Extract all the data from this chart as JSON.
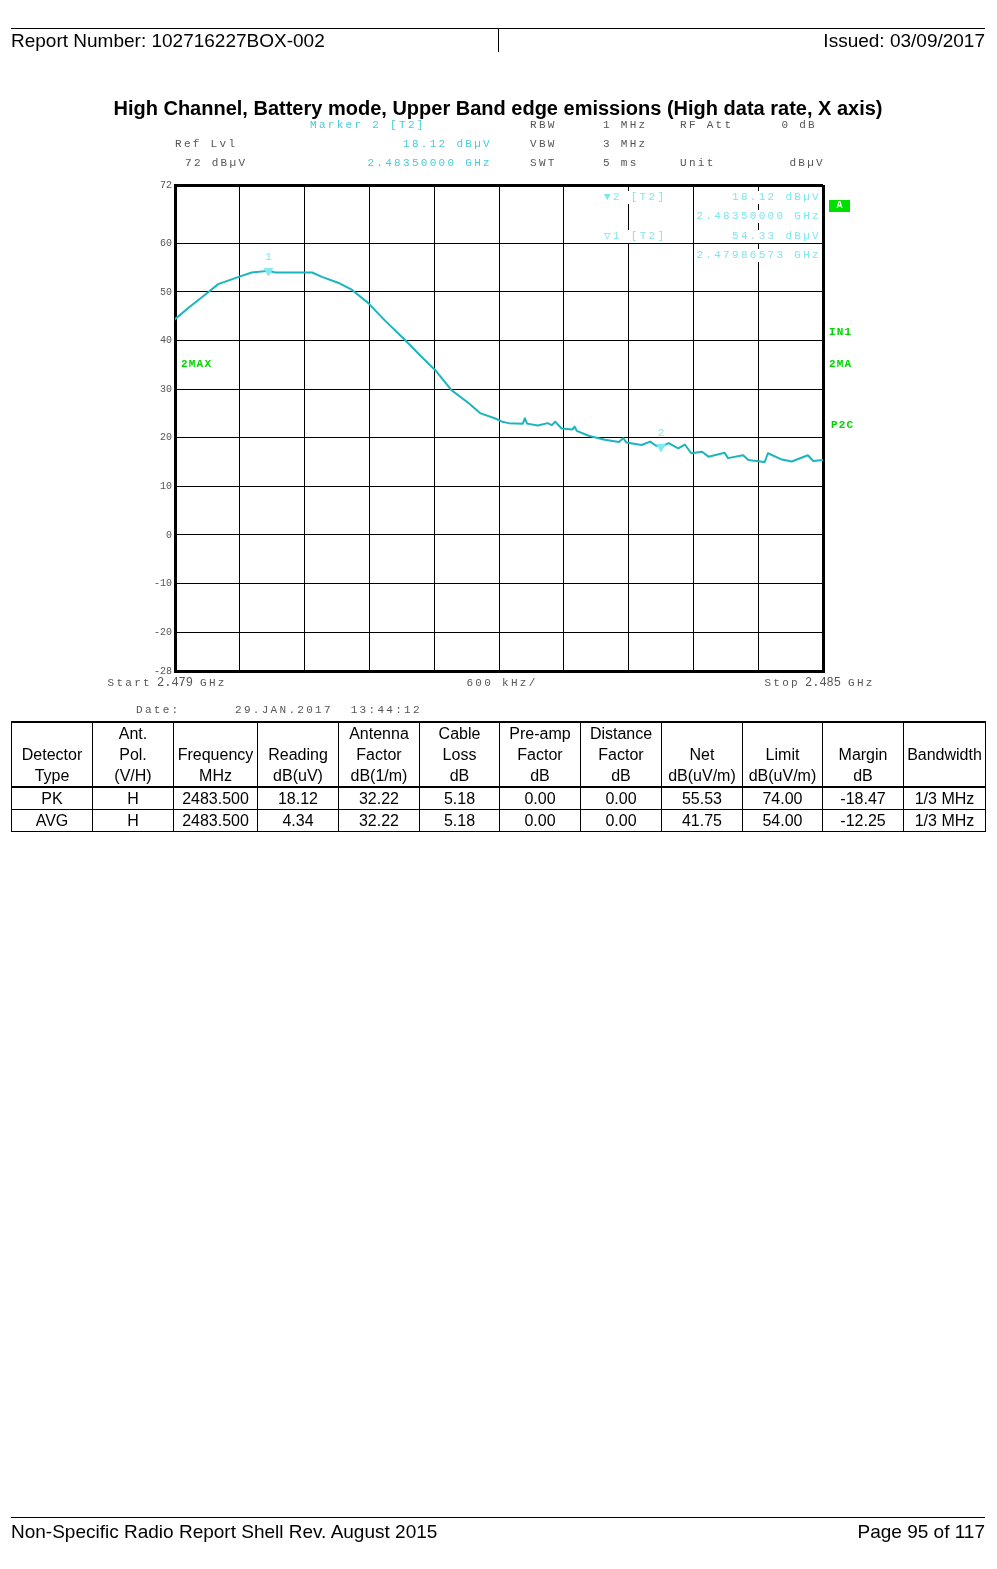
{
  "chart_data": [
    {
      "type": "line",
      "title": "High Channel, Battery mode, Upper Band edge emissions (High data rate, X axis)",
      "xlabel": "600 kHz/",
      "xlim": [
        2.479,
        2.485
      ],
      "xticks": [
        2.479,
        {
          "value": 2.4796,
          "label": null
        },
        {
          "value": 2.4802,
          "label": null
        },
        {
          "value": 2.4808,
          "label": null
        },
        {
          "value": 2.4814,
          "label": null
        },
        {
          "value": 2.482,
          "label": null
        },
        {
          "value": 2.4826,
          "label": null
        },
        {
          "value": 2.4832,
          "label": null
        },
        {
          "value": 2.4838,
          "label": null
        },
        {
          "value": 2.4844,
          "label": null
        },
        2.485
      ],
      "ylim": [
        -28,
        72
      ],
      "yticks": [
        -28,
        -20,
        -10,
        0,
        10,
        20,
        30,
        40,
        50,
        60,
        72
      ],
      "grid": true,
      "series": [
        {
          "type": "line",
          "color": "#1ab5bd",
          "marker": "none",
          "x": [
            2.479,
            2.47914,
            2.47931,
            2.4794,
            2.47959,
            2.47971,
            2.47986573,
            2.47993,
            2.4801,
            2.48027,
            2.48036,
            2.48051,
            2.48064,
            2.48079,
            2.48094,
            2.48113,
            2.48128,
            2.48141,
            2.48156,
            2.48172,
            2.48183,
            2.48196,
            2.48203,
            2.48209,
            2.48222,
            2.48224,
            2.48226,
            2.48236,
            2.48245,
            2.48249,
            2.48252,
            2.48258,
            2.48268,
            2.4827,
            2.48272,
            2.48283,
            2.48298,
            2.48311,
            2.48315,
            2.48318,
            2.48332,
            2.4834,
            2.48345,
            2.4835,
            2.48357,
            2.48366,
            2.48372,
            2.48378,
            2.48388,
            2.48394,
            2.48409,
            2.48412,
            2.48426,
            2.48431,
            2.48446,
            2.48449,
            2.48462,
            2.48471,
            2.48486,
            2.48491,
            2.485
          ],
          "values": [
            44.4,
            47.0,
            50.0,
            51.6,
            53.1,
            54.0,
            54.33,
            54.0,
            54.0,
            54.0,
            53.1,
            51.9,
            50.4,
            47.7,
            44.2,
            40.1,
            36.7,
            33.9,
            29.8,
            27.1,
            25.0,
            24.0,
            23.3,
            23.0,
            22.9,
            24.0,
            22.9,
            22.5,
            23.0,
            22.6,
            23.3,
            21.9,
            21.7,
            22.3,
            21.4,
            20.4,
            19.6,
            19.1,
            19.9,
            19.0,
            18.5,
            19.2,
            18.4,
            18.12,
            18.9,
            17.8,
            18.6,
            16.8,
            17.1,
            16.1,
            16.9,
            15.8,
            16.4,
            15.4,
            15.0,
            16.8,
            15.5,
            15.1,
            16.4,
            15.2,
            15.4
          ]
        },
        {
          "type": "scatter",
          "color": "#80eaf2",
          "marker": "triangle",
          "x": [
            2.47986573,
            2.4835
          ],
          "values": [
            54.33,
            18.12
          ]
        }
      ],
      "annotations": [
        "Report Number: 102716227BOX-002",
        "Issued: 03/09/2017",
        "Marker 2 [T2]",
        "Ref Lvl",
        "18.12 dBµV",
        "72 dBµV",
        "2.48350000 GHz",
        "RBW",
        "1 MHz",
        "RF Att",
        "0 dB",
        "VBW",
        "3 MHz",
        "SWT",
        "5 ms",
        "Unit",
        "dBµV",
        "▼2 [T2]",
        "18.12 dBµV",
        "2.48350000 GHz",
        "▽1 [T2]",
        "54.33 dBµV",
        "2.47986573 GHz",
        "2MAX",
        "A",
        "IN1",
        "2MA",
        "P2C",
        "Date:",
        "29.JAN.2017  13:44:12",
        "Start",
        "GHz",
        "Stop",
        "GHz",
        {
          "text": "1",
          "x": 2.47986573,
          "y": 54.33
        },
        {
          "text": "2",
          "x": 2.4835,
          "y": 18.12
        }
      ]
    },
    {
      "type": "other",
      "categories": [
        "Detector\nType",
        "Ant.\nPol.\n(V/H)",
        "Frequency\nMHz",
        "Reading\ndB(uV)",
        "Antenna\nFactor\ndB(1/m)",
        "Cable\nLoss\ndB",
        "Pre-amp\nFactor\ndB",
        "Distance\nFactor\ndB",
        "Net\ndB(uV/m)",
        "Limit\ndB(uV/m)",
        "Margin\ndB",
        "Bandwidth"
      ],
      "cell_labels": [
        [
          "PK",
          "H",
          "2483.500",
          "18.12",
          "32.22",
          "5.18",
          "0.00",
          "0.00",
          "55.53",
          "74.00",
          "-18.47",
          "1/3 MHz"
        ],
        [
          "AVG",
          "H",
          "2483.500",
          "4.34",
          "32.22",
          "5.18",
          "0.00",
          "0.00",
          "41.75",
          "54.00",
          "-12.25",
          "1/3 MHz"
        ]
      ],
      "annotations": [
        "Non-Specific Radio Report Shell Rev. August 2015",
        "Page 95 of 117"
      ]
    }
  ]
}
